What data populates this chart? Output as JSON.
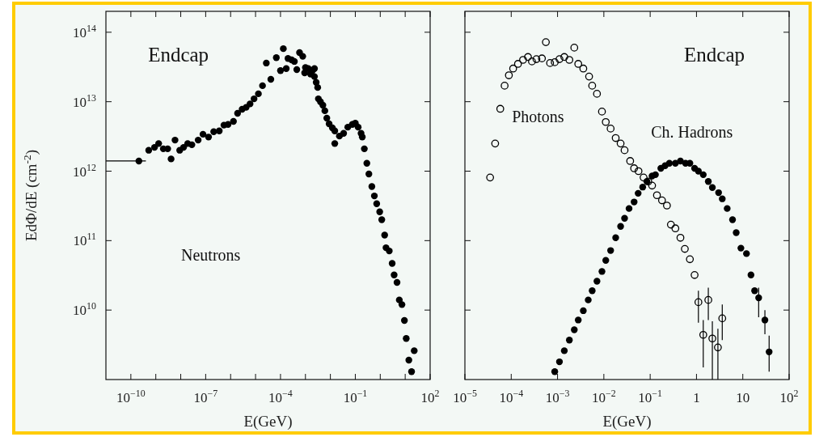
{
  "chart_data": [
    {
      "type": "scatter",
      "title": "Endcap",
      "xlabel": "E(GeV)",
      "ylabel": "EdΦ/dE (cm$^{-2}$)",
      "log": "xy",
      "marker": "circle",
      "xlim": [
        1e-11,
        100
      ],
      "ylim": [
        1000000000.0,
        200000000000000.0
      ],
      "xticks": [
        {
          "value": 1e-10,
          "label": "10$^{−10}$"
        },
        {
          "value": 1e-09,
          "label": null
        },
        {
          "value": 1e-08,
          "label": null
        },
        {
          "value": 1e-07,
          "label": "10$^{−7}$"
        },
        {
          "value": 1e-06,
          "label": null
        },
        {
          "value": 1e-05,
          "label": null
        },
        {
          "value": 0.0001,
          "label": "10$^{−4}$"
        },
        {
          "value": 0.001,
          "label": null
        },
        {
          "value": 0.01,
          "label": null
        },
        {
          "value": 0.1,
          "label": "10$^{−1}$"
        },
        {
          "value": 1,
          "label": null
        },
        {
          "value": 10,
          "label": null
        },
        {
          "value": 100,
          "label": "10$^{2}$"
        }
      ],
      "yticks": [
        {
          "value": 10000000000.0,
          "label": "10$^{10}$"
        },
        {
          "value": 100000000000.0,
          "label": "10$^{11}$"
        },
        {
          "value": 1000000000000.0,
          "label": "10$^{12}$"
        },
        {
          "value": 10000000000000.0,
          "label": "10$^{13}$"
        },
        {
          "value": 100000000000000.0,
          "label": "10$^{14}$"
        }
      ],
      "series": [
        {
          "name": "Neutrons",
          "color": "#000000",
          "x": [
            2.1e-10,
            5.2e-10,
            8.9e-10,
            1.3e-09,
            2e-09,
            3e-09,
            4.1e-09,
            5.9e-09,
            9.1e-09,
            1.3e-08,
            1.9e-08,
            2.8e-08,
            5e-08,
            7.8e-08,
            1.3e-07,
            2.1e-07,
            3.5e-07,
            5.4e-07,
            7.9e-07,
            1.3e-06,
            1.9e-06,
            2.9e-06,
            4.2e-06,
            6e-06,
            8.7e-06,
            1.3e-05,
            1.9e-05,
            2.7e-05,
            4.1e-05,
            6.8e-05,
            0.0001,
            0.00013,
            0.00017,
            0.0002,
            0.00028,
            0.00036,
            0.00045,
            0.00058,
            0.00078,
            0.00093,
            0.001,
            0.0013,
            0.0016,
            0.0019,
            0.0023,
            0.0023,
            0.0027,
            0.0031,
            0.0033,
            0.004,
            0.005,
            0.006,
            0.0072,
            0.0089,
            0.012,
            0.015,
            0.015,
            0.023,
            0.034,
            0.05,
            0.076,
            0.1,
            0.13,
            0.17,
            0.19,
            0.23,
            0.29,
            0.35,
            0.46,
            0.58,
            0.72,
            0.95,
            1.15,
            1.5,
            1.7,
            2.3,
            3.0,
            3.6,
            4.7,
            5.8,
            7.4,
            9.3,
            11,
            14,
            18,
            23
          ],
          "values": [
            1400000000000.0,
            2000000000000.0,
            2200000000000.0,
            2500000000000.0,
            2100000000000.0,
            2100000000000.0,
            1500000000000.0,
            2800000000000.0,
            2000000000000.0,
            2200000000000.0,
            2500000000000.0,
            2400000000000.0,
            2800000000000.0,
            3400000000000.0,
            3100000000000.0,
            3700000000000.0,
            3800000000000.0,
            4600000000000.0,
            4700000000000.0,
            5200000000000.0,
            6800000000000.0,
            7800000000000.0,
            8300000000000.0,
            9300000000000.0,
            11000000000000.0,
            13000000000000.0,
            17000000000000.0,
            36000000000000.0,
            21000000000000.0,
            43000000000000.0,
            28000000000000.0,
            58000000000000.0,
            30000000000000.0,
            42000000000000.0,
            40000000000000.0,
            38000000000000.0,
            29000000000000.0,
            51000000000000.0,
            45000000000000.0,
            26000000000000.0,
            31000000000000.0,
            30000000000000.0,
            25000000000000.0,
            28000000000000.0,
            30000000000000.0,
            23000000000000.0,
            19000000000000.0,
            16000000000000.0,
            11000000000000.0,
            10000000000000.0,
            8900000000000.0,
            7400000000000.0,
            5800000000000.0,
            4800000000000.0,
            4200000000000.0,
            3800000000000.0,
            2500000000000.0,
            3200000000000.0,
            3500000000000.0,
            4300000000000.0,
            4700000000000.0,
            4900000000000.0,
            4300000000000.0,
            3500000000000.0,
            3100000000000.0,
            2100000000000.0,
            1300000000000.0,
            910000000000.0,
            600000000000.0,
            440000000000.0,
            340000000000.0,
            260000000000.0,
            200000000000.0,
            120000000000.0,
            79000000000.0,
            71000000000.0,
            47000000000.0,
            32000000000.0,
            25000000000.0,
            14000000000.0,
            12000000000.0,
            7100000000.0,
            3900000000.0,
            1900000000.0,
            1300000000.0,
            2600000000.0
          ],
          "xerrors": [
            [
              1e-11,
              4e-10
            ],
            null,
            null,
            null,
            null,
            null,
            null,
            null,
            null,
            null,
            null,
            null,
            null,
            null,
            null,
            null,
            null,
            null,
            null,
            null,
            null,
            null,
            null,
            null,
            null,
            null,
            null,
            null,
            null,
            null,
            null,
            null,
            null,
            null,
            null,
            null,
            null,
            null,
            null,
            null,
            null,
            null,
            null,
            null,
            null,
            null,
            null,
            null,
            null,
            null,
            null,
            null,
            null,
            null,
            null,
            null,
            null,
            null,
            null,
            null,
            null,
            null,
            null,
            null,
            null,
            null,
            null,
            null,
            null,
            null,
            null,
            null,
            null,
            null,
            null,
            null,
            null,
            null,
            null,
            null,
            null,
            null,
            null,
            null,
            null,
            null
          ]
        }
      ]
    },
    {
      "type": "scatter",
      "title": "Endcap",
      "xlabel": "E(GeV)",
      "log": "xy",
      "marker": "circle",
      "tick_labels": "x",
      "xlim": [
        1e-05,
        100
      ],
      "ylim": [
        1000000000.0,
        200000000000000.0
      ],
      "xticks": [
        {
          "value": 1e-05,
          "label": "10$^{−5}$"
        },
        {
          "value": 0.0001,
          "label": "10$^{−4}$"
        },
        {
          "value": 0.001,
          "label": "10$^{−3}$"
        },
        {
          "value": 0.01,
          "label": "10$^{−2}$"
        },
        {
          "value": 0.1,
          "label": "10$^{−1}$"
        },
        1,
        10,
        {
          "value": 100,
          "label": "10$^{2}$"
        }
      ],
      "yticks": [
        {
          "value": 10000000000.0,
          "label": null
        },
        {
          "value": 100000000000.0,
          "label": null
        },
        {
          "value": 1000000000000.0,
          "label": null
        },
        {
          "value": 10000000000000.0,
          "label": null
        },
        {
          "value": 100000000000000.0,
          "label": null
        }
      ],
      "series": [
        {
          "name": "Photons",
          "color": "#000000",
          "x": [
            3.5e-05,
            4.5e-05,
            5.8e-05,
            7.2e-05,
            8.9e-05,
            0.00011,
            0.00014,
            0.00018,
            0.00023,
            0.00028,
            0.00035,
            0.00046,
            0.00056,
            0.00069,
            0.00087,
            0.0011,
            0.0014,
            0.0018,
            0.0023,
            0.0028,
            0.0036,
            0.0048,
            0.0056,
            0.0071,
            0.0091,
            0.011,
            0.014,
            0.018,
            0.023,
            0.028,
            0.037,
            0.045,
            0.056,
            0.072,
            0.091,
            0.11,
            0.14,
            0.18,
            0.23,
            0.28,
            0.35,
            0.45,
            0.56,
            0.72,
            0.91,
            1.1,
            1.4,
            1.8,
            2.2,
            2.9,
            3.6
          ],
          "values": [
            810000000000.0,
            2500000000000.0,
            7900000000000.0,
            17000000000000.0,
            24000000000000.0,
            30000000000000.0,
            35000000000000.0,
            40000000000000.0,
            44000000000000.0,
            38000000000000.0,
            41000000000000.0,
            42000000000000.0,
            72000000000000.0,
            36000000000000.0,
            37000000000000.0,
            41000000000000.0,
            44000000000000.0,
            40000000000000.0,
            60000000000000.0,
            35000000000000.0,
            30000000000000.0,
            23000000000000.0,
            17000000000000.0,
            13000000000000.0,
            7200000000000.0,
            5100000000000.0,
            4100000000000.0,
            3000000000000.0,
            2500000000000.0,
            2000000000000.0,
            1400000000000.0,
            1100000000000.0,
            1000000000000.0,
            810000000000.0,
            710000000000.0,
            620000000000.0,
            450000000000.0,
            380000000000.0,
            320000000000.0,
            170000000000.0,
            150000000000.0,
            110000000000.0,
            76000000000.0,
            54000000000.0,
            32000000000.0,
            13000000000.0,
            4400000000.0,
            14000000000.0,
            3900000000.0,
            2900000000.0,
            7600000000.0
          ],
          "errors": [
            null,
            null,
            null,
            null,
            null,
            null,
            null,
            null,
            null,
            null,
            null,
            null,
            null,
            null,
            null,
            null,
            null,
            null,
            null,
            null,
            null,
            null,
            null,
            null,
            null,
            null,
            null,
            null,
            null,
            null,
            null,
            null,
            null,
            null,
            null,
            null,
            null,
            null,
            null,
            null,
            null,
            null,
            null,
            null,
            null,
            [
              6600000000.0,
              19000000000.0
            ],
            [
              1500000000.0,
              7200000000.0
            ],
            [
              7200000000.0,
              21000000000.0
            ],
            [
              1000000000.0,
              6900000000.0
            ],
            [
              1000000000.0,
              5400000000.0
            ],
            [
              3700000000.0,
              12000000000.0
            ]
          ]
        },
        {
          "name": "Ch. Hadrons",
          "color": "#000000",
          "x": [
            0.00087,
            0.0011,
            0.0014,
            0.0018,
            0.0023,
            0.0028,
            0.0036,
            0.0046,
            0.0056,
            0.0071,
            0.0091,
            0.011,
            0.014,
            0.018,
            0.023,
            0.028,
            0.035,
            0.045,
            0.055,
            0.069,
            0.085,
            0.11,
            0.13,
            0.17,
            0.21,
            0.26,
            0.35,
            0.45,
            0.58,
            0.72,
            0.91,
            1.1,
            1.4,
            1.8,
            2.2,
            3.0,
            3.6,
            4.6,
            6.0,
            7.2,
            9.1,
            12,
            15,
            18,
            22,
            30,
            37
          ],
          "values": [
            1300000000.0,
            1800000000.0,
            2600000000.0,
            3700000000.0,
            5200000000.0,
            7200000000.0,
            9800000000.0,
            14000000000.0,
            19000000000.0,
            26000000000.0,
            36000000000.0,
            52000000000.0,
            72000000000.0,
            110000000000.0,
            160000000000.0,
            210000000000.0,
            290000000000.0,
            360000000000.0,
            480000000000.0,
            590000000000.0,
            710000000000.0,
            850000000000.0,
            890000000000.0,
            1100000000000.0,
            1200000000000.0,
            1300000000000.0,
            1300000000000.0,
            1400000000000.0,
            1300000000000.0,
            1300000000000.0,
            1100000000000.0,
            1000000000000.0,
            890000000000.0,
            710000000000.0,
            580000000000.0,
            490000000000.0,
            400000000000.0,
            290000000000.0,
            200000000000.0,
            130000000000.0,
            78000000000.0,
            65000000000.0,
            32000000000.0,
            19000000000.0,
            15000000000.0,
            7200000000.0,
            2500000000.0
          ],
          "errors": [
            null,
            null,
            null,
            null,
            null,
            null,
            null,
            null,
            null,
            null,
            null,
            null,
            null,
            null,
            null,
            null,
            null,
            null,
            null,
            null,
            null,
            null,
            null,
            null,
            null,
            null,
            null,
            null,
            null,
            null,
            null,
            null,
            null,
            null,
            null,
            null,
            null,
            null,
            null,
            null,
            null,
            null,
            null,
            null,
            [
              7900000000.0,
              21000000000.0
            ],
            [
              4500000000.0,
              10000000000.0
            ],
            [
              1300000000.0,
              4300000000.0
            ]
          ]
        }
      ]
    }
  ]
}
